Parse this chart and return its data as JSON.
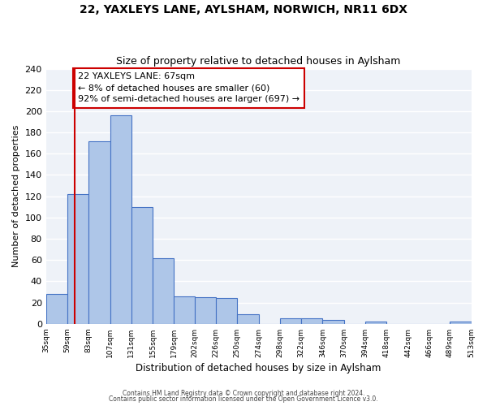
{
  "title": "22, YAXLEYS LANE, AYLSHAM, NORWICH, NR11 6DX",
  "subtitle": "Size of property relative to detached houses in Aylsham",
  "xlabel": "Distribution of detached houses by size in Aylsham",
  "ylabel": "Number of detached properties",
  "bin_edges": [
    35,
    59,
    83,
    107,
    131,
    155,
    179,
    202,
    226,
    250,
    274,
    298,
    322,
    346,
    370,
    394,
    418,
    442,
    466,
    489,
    513
  ],
  "bin_counts": [
    28,
    122,
    172,
    196,
    110,
    62,
    26,
    25,
    24,
    9,
    0,
    5,
    5,
    4,
    0,
    2,
    0,
    0,
    0,
    2
  ],
  "bar_color": "#aec6e8",
  "bar_edge_color": "#4472c4",
  "vline_x": 67,
  "vline_color": "#cc0000",
  "annotation_title": "22 YAXLEYS LANE: 67sqm",
  "annotation_line1": "← 8% of detached houses are smaller (60)",
  "annotation_line2": "92% of semi-detached houses are larger (697) →",
  "annotation_box_color": "#ffffff",
  "annotation_box_edge_color": "#cc0000",
  "ylim": [
    0,
    240
  ],
  "yticks": [
    0,
    20,
    40,
    60,
    80,
    100,
    120,
    140,
    160,
    180,
    200,
    220,
    240
  ],
  "tick_labels": [
    "35sqm",
    "59sqm",
    "83sqm",
    "107sqm",
    "131sqm",
    "155sqm",
    "179sqm",
    "202sqm",
    "226sqm",
    "250sqm",
    "274sqm",
    "298sqm",
    "322sqm",
    "346sqm",
    "370sqm",
    "394sqm",
    "418sqm",
    "442sqm",
    "466sqm",
    "489sqm",
    "513sqm"
  ],
  "footer1": "Contains HM Land Registry data © Crown copyright and database right 2024.",
  "footer2": "Contains public sector information licensed under the Open Government Licence v3.0.",
  "bg_color": "#eef2f8"
}
